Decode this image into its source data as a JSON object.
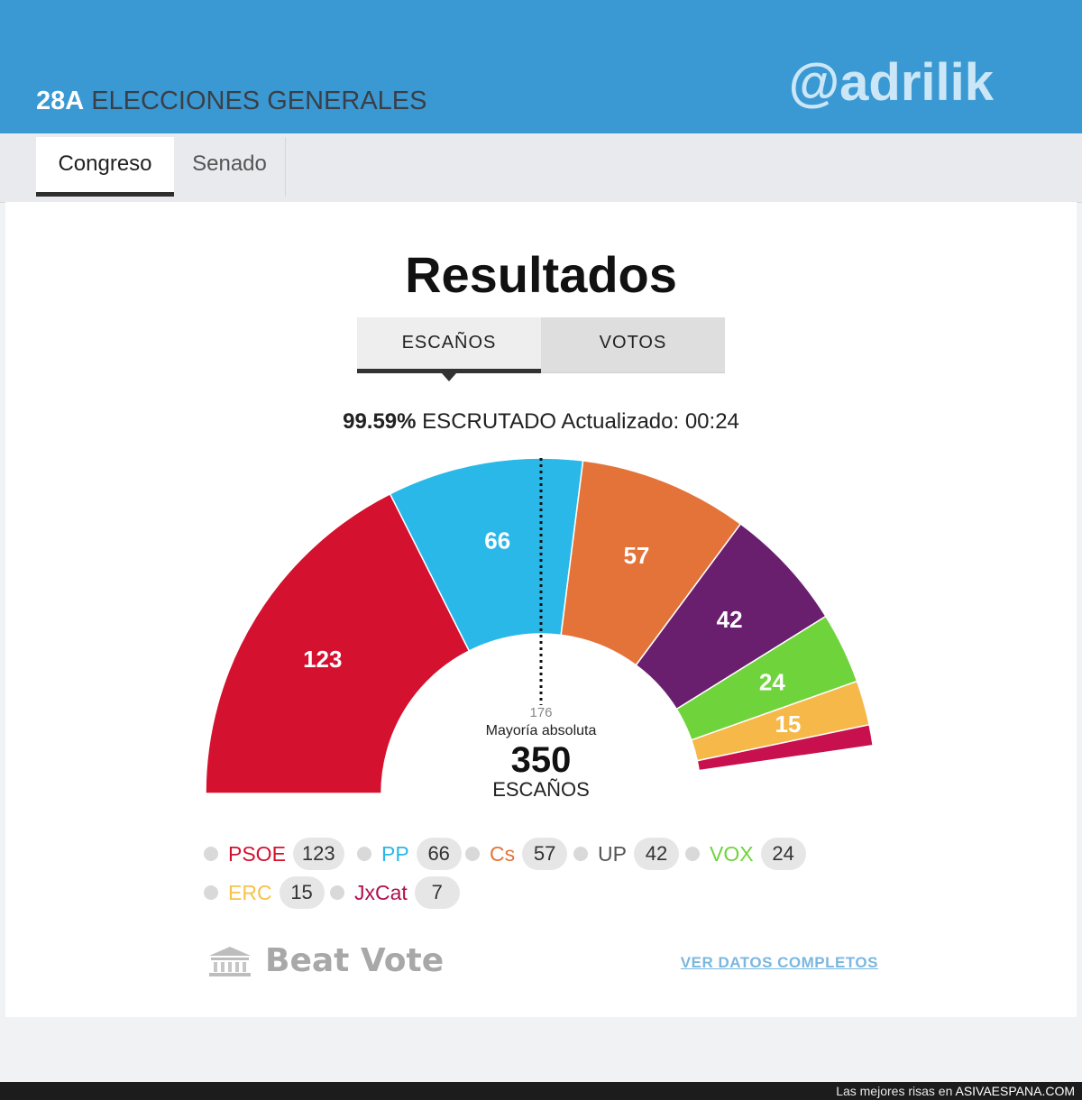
{
  "header": {
    "tag": "28A",
    "title": "ELECCIONES GENERALES",
    "handle": "@adrilik"
  },
  "tabs": [
    {
      "label": "Congreso",
      "active": true
    },
    {
      "label": "Senado",
      "active": false
    }
  ],
  "results": {
    "title": "Resultados",
    "toggle": {
      "seats_label": "ESCAÑOS",
      "votes_label": "VOTOS",
      "active": "seats"
    },
    "status": {
      "percent": "99.59%",
      "text": "ESCRUTADO Actualizado: 00:24"
    },
    "center": {
      "majority_value": "176",
      "majority_label": "Mayoría absoluta",
      "total": "350",
      "total_label": "ESCAÑOS"
    }
  },
  "chart_data": {
    "type": "pie",
    "variant": "semicircle",
    "total": 350,
    "majority": 176,
    "series": [
      {
        "name": "PSOE",
        "value": 123,
        "color": "#d4112e"
      },
      {
        "name": "PP",
        "value": 66,
        "color": "#2ab8e8"
      },
      {
        "name": "Cs",
        "value": 57,
        "color": "#e4733a"
      },
      {
        "name": "UP",
        "value": 42,
        "color": "#6a1f6e"
      },
      {
        "name": "VOX",
        "value": 24,
        "color": "#6fd43b"
      },
      {
        "name": "ERC",
        "value": 15,
        "color": "#f7b84a"
      },
      {
        "name": "JxCat",
        "value": 7,
        "color": "#c8104e"
      }
    ]
  },
  "legend": [
    {
      "name": "PSOE",
      "count": "123",
      "color": "#d4112e"
    },
    {
      "name": "PP",
      "count": "66",
      "color": "#2ab8e8"
    },
    {
      "name": "Cs",
      "count": "57",
      "color": "#e4733a"
    },
    {
      "name": "UP",
      "count": "42",
      "color": "#555555"
    },
    {
      "name": "VOX",
      "count": "24",
      "color": "#6fd43b"
    },
    {
      "name": "ERC",
      "count": "15",
      "color": "#f7c24a"
    },
    {
      "name": "JxCat",
      "count": "7",
      "color": "#b0104e"
    }
  ],
  "footer": {
    "logo": "Beat Vote",
    "logo_icon": "parliament-icon",
    "link": "VER DATOS COMPLETOS"
  },
  "watermark": {
    "prefix": "Las mejores risas en",
    "site": "ASIVAESPANA.COM"
  }
}
